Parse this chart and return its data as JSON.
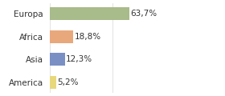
{
  "categories": [
    "Europa",
    "Africa",
    "Asia",
    "America"
  ],
  "values": [
    63.7,
    18.8,
    12.3,
    5.2
  ],
  "labels": [
    "63,7%",
    "18,8%",
    "12,3%",
    "5,2%"
  ],
  "bar_colors": [
    "#a8bb8a",
    "#e8a87c",
    "#7a8fc4",
    "#e8d87c"
  ],
  "background_color": "#ffffff",
  "xlim": [
    0,
    100
  ],
  "label_fontsize": 7.5,
  "tick_fontsize": 7.5,
  "bar_height": 0.55
}
